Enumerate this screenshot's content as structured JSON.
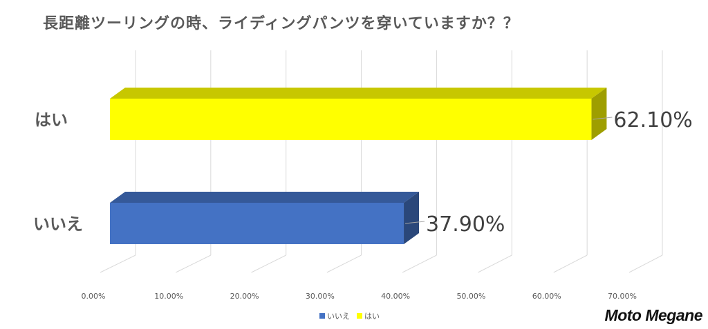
{
  "chart_data": {
    "type": "bar",
    "orientation": "horizontal",
    "style": "3d",
    "title": "長距離ツーリングの時、ライディングパンツを穿いていますか？？",
    "categories": [
      "はい",
      "いいえ"
    ],
    "values": [
      62.1,
      37.9
    ],
    "data_labels": [
      "62.10%",
      "37.90%"
    ],
    "colors": [
      "#FFFF00",
      "#4472C4"
    ],
    "x_ticks": [
      "0.00%",
      "10.00%",
      "20.00%",
      "30.00%",
      "40.00%",
      "50.00%",
      "60.00%",
      "70.00%"
    ],
    "xlim": [
      0,
      70
    ],
    "grid": true,
    "legend": {
      "position": "bottom",
      "items": [
        {
          "label": "いいえ",
          "color": "#4472C4"
        },
        {
          "label": "はい",
          "color": "#FFFF00"
        }
      ]
    }
  },
  "brand": "Moto Megane"
}
